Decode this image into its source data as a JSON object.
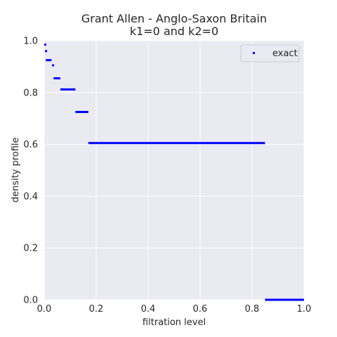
{
  "chart_data": {
    "type": "scatter",
    "title": "Grant Allen - Anglo-Saxon Britain",
    "subtitle": "k1=0 and k2=0",
    "xlabel": "filtration level",
    "ylabel": "density profile",
    "xlim": [
      0.0,
      1.0
    ],
    "ylim": [
      0.0,
      1.0
    ],
    "xticks": [
      "0.0",
      "0.2",
      "0.4",
      "0.6",
      "0.8",
      "1.0"
    ],
    "yticks": [
      "0.0",
      "0.2",
      "0.4",
      "0.6",
      "0.8",
      "1.0"
    ],
    "grid": true,
    "legend_position": "top-right",
    "series": [
      {
        "name": "exact",
        "color": "#0000ff",
        "segments": [
          {
            "x_start": 0.0,
            "x_end": 0.003,
            "y": 0.985
          },
          {
            "x_start": 0.003,
            "x_end": 0.006,
            "y": 0.96
          },
          {
            "x_start": 0.006,
            "x_end": 0.028,
            "y": 0.925
          },
          {
            "x_start": 0.03,
            "x_end": 0.036,
            "y": 0.905
          },
          {
            "x_start": 0.036,
            "x_end": 0.062,
            "y": 0.855
          },
          {
            "x_start": 0.062,
            "x_end": 0.12,
            "y": 0.812
          },
          {
            "x_start": 0.12,
            "x_end": 0.17,
            "y": 0.725
          },
          {
            "x_start": 0.17,
            "x_end": 0.85,
            "y": 0.605
          },
          {
            "x_start": 0.85,
            "x_end": 1.0,
            "y": 0.0
          }
        ]
      }
    ]
  }
}
